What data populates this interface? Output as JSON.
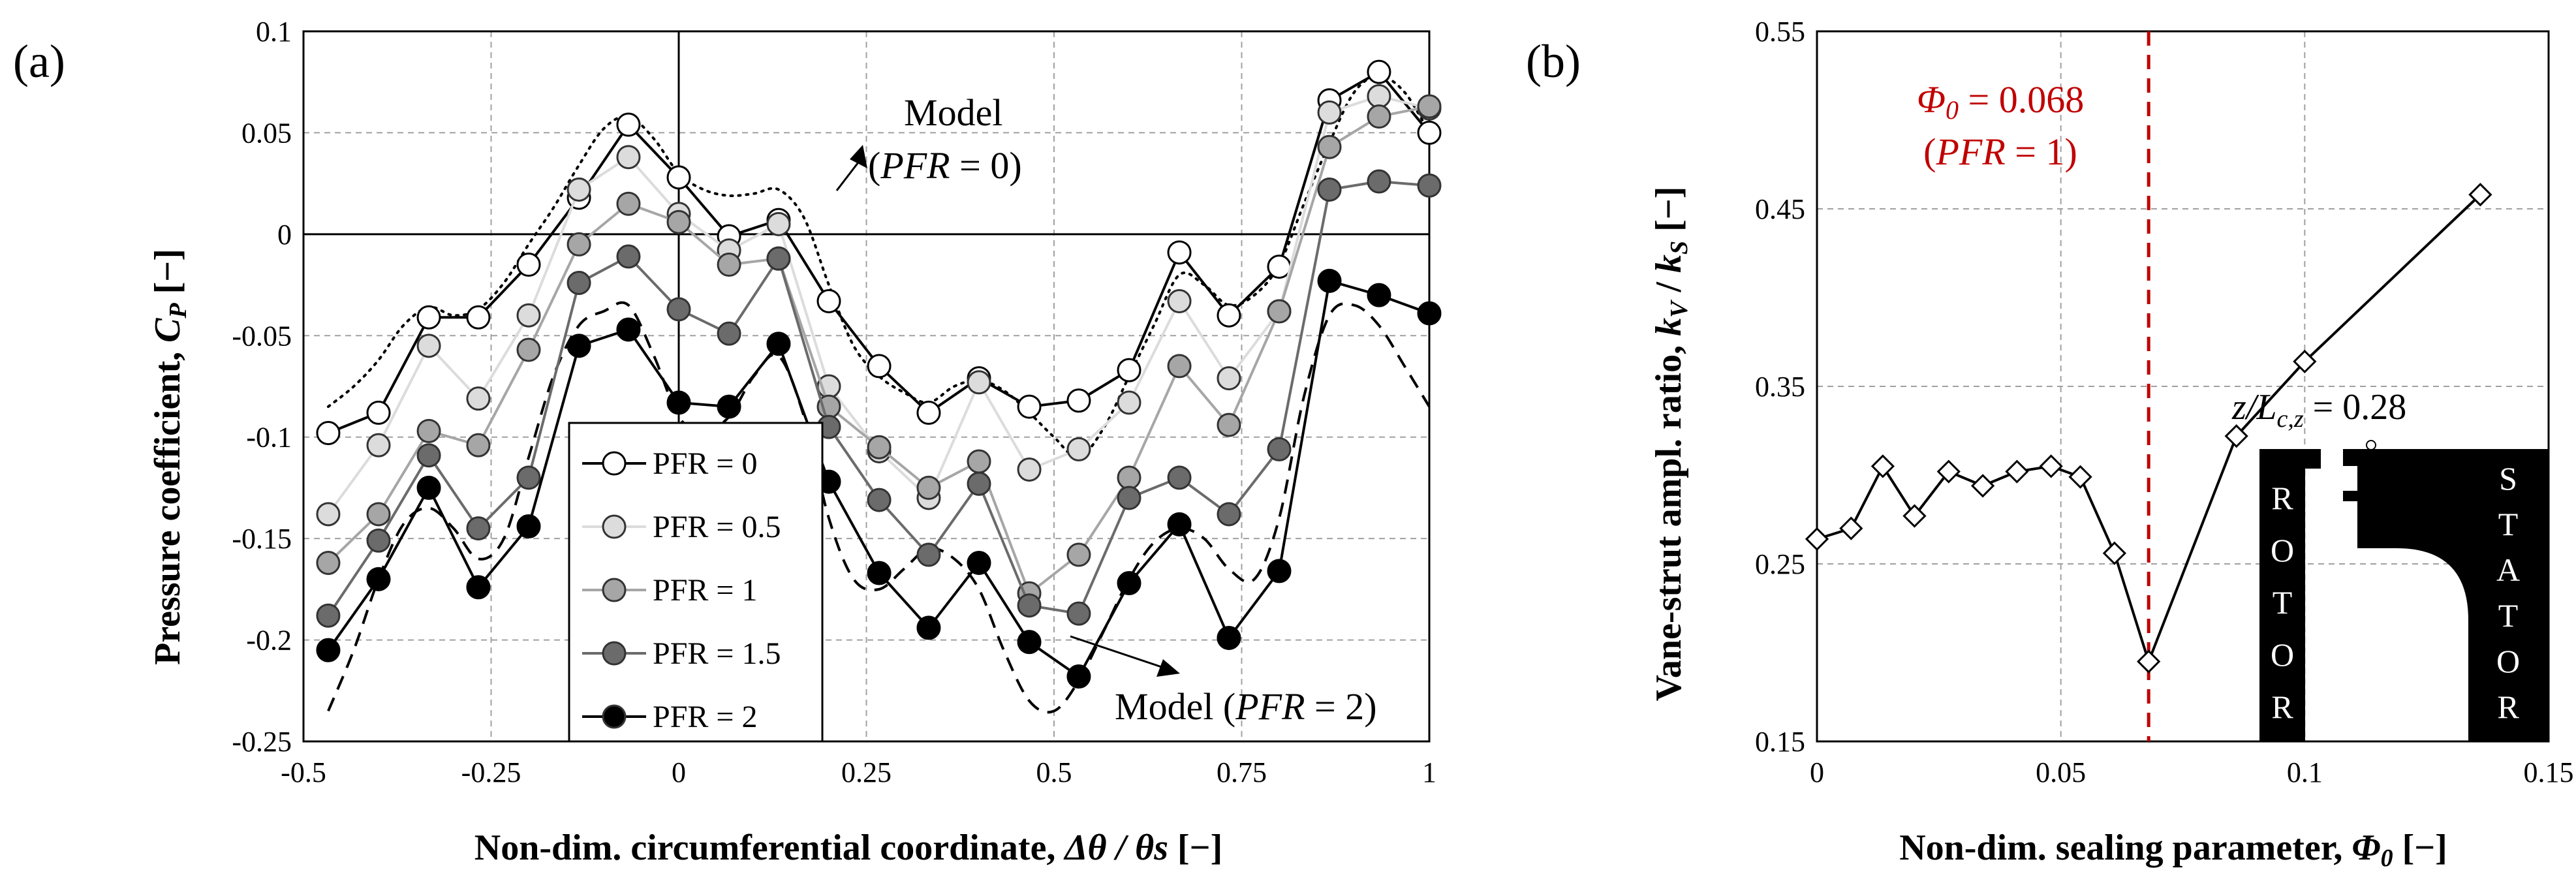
{
  "chart_data": [
    {
      "type": "line",
      "panel_label": "(a)",
      "xlabel": "Non-dim. circumferential coordinate, Δθ / θs [−]",
      "ylabel": "Pressure  coefficient, C_P [−]",
      "xlim": [
        -0.5,
        1
      ],
      "ylim": [
        -0.25,
        0.1
      ],
      "xticks": [
        -0.5,
        -0.25,
        0,
        0.25,
        0.5,
        0.75,
        1
      ],
      "xtick_labels": [
        "-0.5",
        "-0.25",
        "0",
        "0.25",
        "0.5",
        "0.75",
        "1"
      ],
      "yticks": [
        -0.25,
        -0.2,
        -0.15,
        -0.1,
        -0.05,
        0,
        0.05,
        0.1
      ],
      "ytick_labels": [
        "-0.25",
        "-0.2",
        "-0.15",
        "-0.1",
        "-0.05",
        "0",
        "0.05",
        "0.1"
      ],
      "x": [
        -0.467,
        -0.4,
        -0.333,
        -0.267,
        -0.2,
        -0.133,
        -0.067,
        0,
        0.067,
        0.133,
        0.2,
        0.267,
        0.333,
        0.4,
        0.467,
        0.533,
        0.6,
        0.667,
        0.733,
        0.8,
        0.867,
        0.933,
        1.0
      ],
      "series": [
        {
          "name": "PFR = 0",
          "fill": "#ffffff",
          "values": [
            -0.098,
            -0.088,
            -0.041,
            -0.041,
            -0.015,
            0.018,
            0.054,
            0.028,
            -0.001,
            0.007,
            -0.033,
            -0.065,
            -0.088,
            -0.071,
            -0.085,
            -0.082,
            -0.067,
            -0.009,
            -0.04,
            -0.016,
            0.066,
            0.08,
            0.05
          ]
        },
        {
          "name": "PFR = 0.5",
          "fill": "#dcdcdc",
          "values": [
            -0.138,
            -0.104,
            -0.055,
            -0.081,
            -0.04,
            0.022,
            0.038,
            0.01,
            -0.008,
            0.005,
            -0.075,
            -0.107,
            -0.13,
            -0.073,
            -0.116,
            -0.106,
            -0.083,
            -0.033,
            -0.071,
            -0.038,
            0.06,
            0.068,
            0.062
          ]
        },
        {
          "name": "PFR = 1",
          "fill": "#a6a6a6",
          "values": [
            -0.162,
            -0.138,
            -0.097,
            -0.104,
            -0.057,
            -0.005,
            0.015,
            0.006,
            -0.015,
            -0.012,
            -0.085,
            -0.105,
            -0.125,
            -0.112,
            -0.177,
            -0.158,
            -0.12,
            -0.065,
            -0.094,
            -0.038,
            0.043,
            0.058,
            0.063
          ]
        },
        {
          "name": "PFR = 1.5",
          "fill": "#6b6b6b",
          "values": [
            -0.188,
            -0.151,
            -0.109,
            -0.145,
            -0.12,
            -0.024,
            -0.011,
            -0.037,
            -0.049,
            -0.012,
            -0.095,
            -0.131,
            -0.158,
            -0.123,
            -0.183,
            -0.187,
            -0.13,
            -0.12,
            -0.138,
            -0.106,
            0.022,
            0.026,
            0.024
          ]
        },
        {
          "name": "PFR = 2",
          "fill": "#000000",
          "values": [
            -0.205,
            -0.17,
            -0.125,
            -0.174,
            -0.144,
            -0.055,
            -0.047,
            -0.083,
            -0.085,
            -0.054,
            -0.122,
            -0.167,
            -0.194,
            -0.162,
            -0.201,
            -0.218,
            -0.172,
            -0.143,
            -0.199,
            -0.166,
            -0.023,
            -0.03,
            -0.039
          ]
        }
      ],
      "model_curves": [
        {
          "name": "Model (PFR = 0)",
          "style": "dotted",
          "x": [
            -0.467,
            -0.433,
            -0.4,
            -0.367,
            -0.333,
            -0.3,
            -0.267,
            -0.233,
            -0.2,
            -0.167,
            -0.133,
            -0.1,
            -0.067,
            -0.033,
            0,
            0.033,
            0.067,
            0.1,
            0.133,
            0.167,
            0.2,
            0.233,
            0.267,
            0.3,
            0.333,
            0.367,
            0.4,
            0.433,
            0.467,
            0.5,
            0.533,
            0.567,
            0.6,
            0.633,
            0.667,
            0.7,
            0.733,
            0.767,
            0.8,
            0.833,
            0.867,
            0.9,
            0.933,
            0.967,
            1.0
          ],
          "values": [
            -0.085,
            -0.075,
            -0.062,
            -0.045,
            -0.036,
            -0.04,
            -0.037,
            -0.024,
            -0.005,
            0.013,
            0.034,
            0.052,
            0.058,
            0.047,
            0.03,
            0.022,
            0.019,
            0.02,
            0.022,
            0.008,
            -0.025,
            -0.055,
            -0.07,
            -0.078,
            -0.083,
            -0.075,
            -0.072,
            -0.077,
            -0.088,
            -0.1,
            -0.11,
            -0.095,
            -0.07,
            -0.045,
            -0.02,
            -0.025,
            -0.035,
            -0.03,
            -0.015,
            0.015,
            0.045,
            0.07,
            0.078,
            0.07,
            0.05
          ]
        },
        {
          "name": "Model (PFR = 2)",
          "style": "dashed",
          "x": [
            -0.467,
            -0.433,
            -0.4,
            -0.367,
            -0.333,
            -0.3,
            -0.267,
            -0.233,
            -0.2,
            -0.167,
            -0.133,
            -0.1,
            -0.067,
            -0.033,
            0,
            0.033,
            0.067,
            0.1,
            0.133,
            0.167,
            0.2,
            0.233,
            0.267,
            0.3,
            0.333,
            0.367,
            0.4,
            0.433,
            0.467,
            0.5,
            0.533,
            0.567,
            0.6,
            0.633,
            0.667,
            0.7,
            0.733,
            0.767,
            0.8,
            0.833,
            0.867,
            0.9,
            0.933,
            0.967,
            1.0
          ],
          "values": [
            -0.235,
            -0.205,
            -0.17,
            -0.143,
            -0.135,
            -0.145,
            -0.16,
            -0.15,
            -0.11,
            -0.07,
            -0.045,
            -0.038,
            -0.035,
            -0.06,
            -0.09,
            -0.097,
            -0.09,
            -0.07,
            -0.06,
            -0.09,
            -0.14,
            -0.17,
            -0.175,
            -0.165,
            -0.155,
            -0.16,
            -0.175,
            -0.205,
            -0.23,
            -0.235,
            -0.22,
            -0.195,
            -0.17,
            -0.152,
            -0.145,
            -0.15,
            -0.165,
            -0.17,
            -0.14,
            -0.08,
            -0.04,
            -0.035,
            -0.045,
            -0.065,
            -0.085
          ]
        }
      ],
      "annotations": [
        {
          "text_main": "Model",
          "text_sub_prefix": "(",
          "text_sub_italic": "PFR",
          "text_sub_suffix": " = 0)"
        },
        {
          "text_prefix": "Model (",
          "text_italic": "PFR",
          "text_suffix": " = 2)"
        }
      ],
      "legend": {
        "position": "lower-center"
      }
    },
    {
      "type": "line",
      "panel_label": "(b)",
      "xlabel": "Non-dim. sealing parameter, Φ₀ [−]",
      "ylabel": "Vane-strut  ampl. ratio, k_V / k_S [−]",
      "xlim": [
        0,
        0.15
      ],
      "ylim": [
        0.15,
        0.55
      ],
      "xticks": [
        0,
        0.05,
        0.1,
        0.15
      ],
      "xtick_labels": [
        "0",
        "0.05",
        "0.1",
        "0.15"
      ],
      "yticks": [
        0.15,
        0.25,
        0.35,
        0.45,
        0.55
      ],
      "ytick_labels": [
        "0.15",
        "0.25",
        "0.35",
        "0.45",
        "0.55"
      ],
      "x": [
        0,
        0.007,
        0.0135,
        0.02,
        0.027,
        0.034,
        0.041,
        0.048,
        0.054,
        0.061,
        0.068,
        0.086,
        0.1,
        0.136
      ],
      "series": [
        {
          "name": "Vane-strut ratio",
          "values": [
            0.264,
            0.27,
            0.305,
            0.277,
            0.302,
            0.294,
            0.302,
            0.305,
            0.299,
            0.256,
            0.195,
            0.322,
            0.364,
            0.458
          ]
        }
      ],
      "reference_line": {
        "x": 0.068,
        "color": "#c00000",
        "label_prefix": "Φ₀ = ",
        "label_value": "0.068",
        "label2_prefix": "(",
        "label2_italic": "PFR",
        "label2_suffix": " = 1)"
      },
      "inset": {
        "label": "z/L_c,z = 0.28",
        "label_prefix": "z/L",
        "label_sub": "c,z",
        "label_suffix": " = 0.28",
        "rotor_letters": [
          "R",
          "O",
          "T",
          "O",
          "R"
        ],
        "stator_letters": [
          "S",
          "T",
          "A",
          "T",
          "O",
          "R"
        ]
      }
    }
  ]
}
